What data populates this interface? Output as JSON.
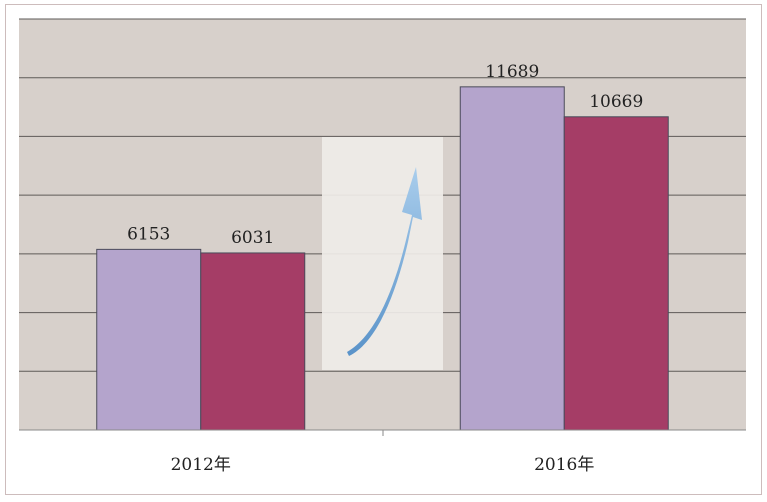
{
  "chart_data": {
    "type": "bar",
    "categories": [
      "2012年",
      "2016年"
    ],
    "series": [
      {
        "values": [
          6153,
          11689
        ],
        "color": "#b4a4cc"
      },
      {
        "values": [
          6031,
          10669
        ],
        "color": "#a53d66"
      }
    ],
    "ylim": [
      0,
      14000
    ],
    "grid": true,
    "plot_background": "#d7d0cb",
    "annotation": "upward-arrow-icon"
  }
}
